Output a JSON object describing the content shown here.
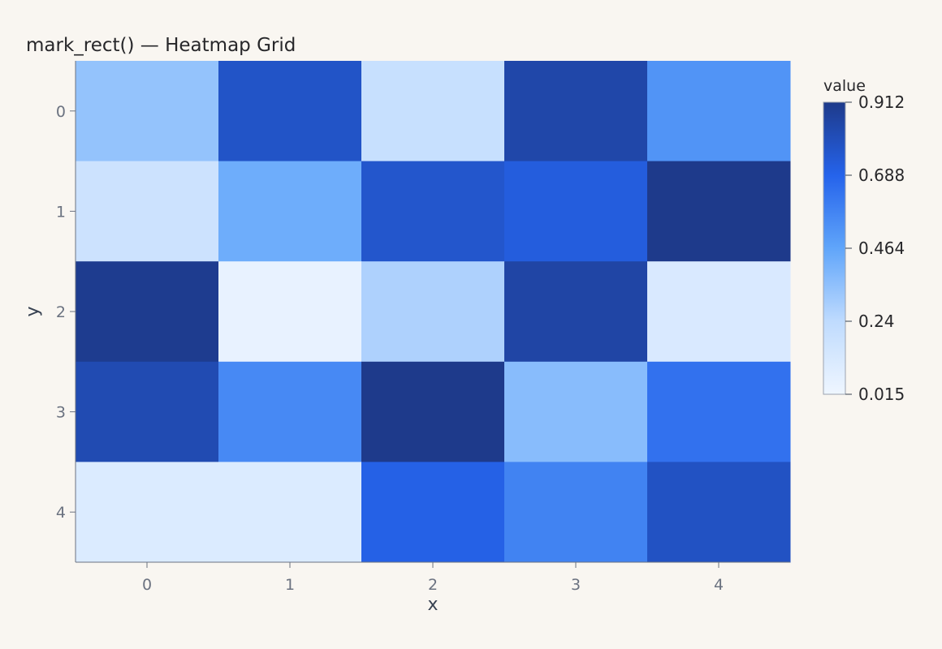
{
  "chart_data": {
    "type": "heatmap",
    "title": "mark_rect() — Heatmap Grid",
    "xlabel": "x",
    "ylabel": "y",
    "x_categories": [
      "0",
      "1",
      "2",
      "3",
      "4"
    ],
    "y_categories": [
      "0",
      "1",
      "2",
      "3",
      "4"
    ],
    "values": [
      [
        0.34,
        0.77,
        0.2,
        0.84,
        0.52
      ],
      [
        0.18,
        0.43,
        0.76,
        0.72,
        0.91
      ],
      [
        0.9,
        0.05,
        0.28,
        0.85,
        0.12
      ],
      [
        0.82,
        0.56,
        0.91,
        0.37,
        0.64
      ],
      [
        0.11,
        0.11,
        0.7,
        0.58,
        0.78
      ]
    ],
    "color_scale": {
      "min": 0.015,
      "max": 0.912,
      "stops": [
        "#eff6ff",
        "#bfdbfe",
        "#60a5fa",
        "#2563eb",
        "#1e3a8a"
      ]
    },
    "legend": {
      "title": "value",
      "ticks": [
        "0.912",
        "0.688",
        "0.464",
        "0.24",
        "0.015"
      ],
      "placement": "right"
    },
    "grid": false
  }
}
